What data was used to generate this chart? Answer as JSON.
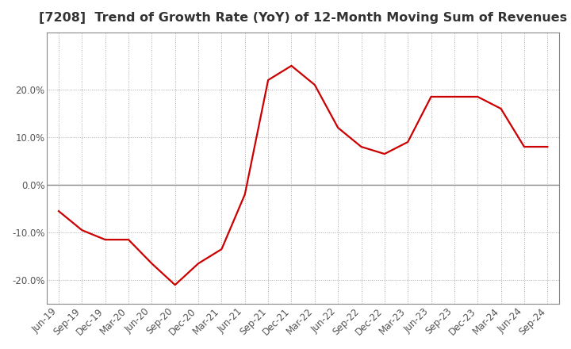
{
  "title": "[7208]  Trend of Growth Rate (YoY) of 12-Month Moving Sum of Revenues",
  "title_fontsize": 11.5,
  "line_color": "#cc0000",
  "background_color": "#ffffff",
  "plot_bg_color": "#ffffff",
  "grid_color": "#aaaaaa",
  "x_labels": [
    "Jun-19",
    "Sep-19",
    "Dec-19",
    "Mar-20",
    "Jun-20",
    "Sep-20",
    "Dec-20",
    "Mar-21",
    "Jun-21",
    "Sep-21",
    "Dec-21",
    "Mar-22",
    "Jun-22",
    "Sep-22",
    "Dec-22",
    "Mar-23",
    "Jun-23",
    "Sep-23",
    "Dec-23",
    "Mar-24",
    "Jun-24",
    "Sep-24"
  ],
  "y_values": [
    -5.5,
    -9.5,
    -11.5,
    -11.5,
    -16.5,
    -21.0,
    -16.5,
    -13.5,
    -2.0,
    22.0,
    25.0,
    21.0,
    12.0,
    8.0,
    6.5,
    9.0,
    18.5,
    18.5,
    18.5,
    16.0,
    8.0,
    8.0
  ],
  "ylim": [
    -25,
    32
  ],
  "yticks": [
    -20.0,
    -10.0,
    0.0,
    10.0,
    20.0
  ],
  "zero_line_color": "#888888",
  "border_color": "#888888",
  "tick_label_color": "#555555",
  "tick_label_fontsize": 8.5
}
